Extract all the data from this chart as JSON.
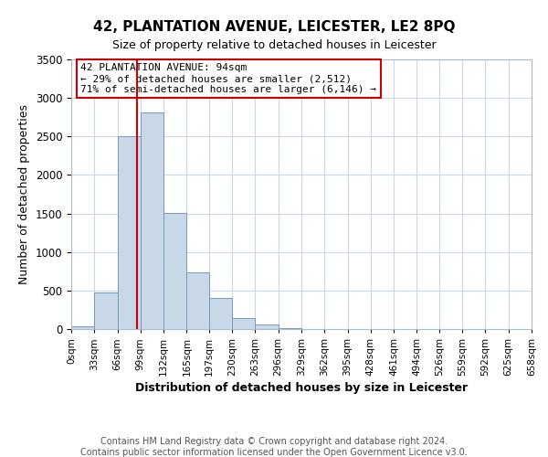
{
  "title": "42, PLANTATION AVENUE, LEICESTER, LE2 8PQ",
  "subtitle": "Size of property relative to detached houses in Leicester",
  "xlabel": "Distribution of detached houses by size in Leicester",
  "ylabel": "Number of detached properties",
  "bin_edges": [
    0,
    33,
    66,
    99,
    132,
    165,
    197,
    230,
    263,
    296,
    329,
    362,
    395,
    428,
    461,
    494,
    526,
    559,
    592,
    625,
    658
  ],
  "bin_labels": [
    "0sqm",
    "33sqm",
    "66sqm",
    "99sqm",
    "132sqm",
    "165sqm",
    "197sqm",
    "230sqm",
    "263sqm",
    "296sqm",
    "329sqm",
    "362sqm",
    "395sqm",
    "428sqm",
    "461sqm",
    "494sqm",
    "526sqm",
    "559sqm",
    "592sqm",
    "625sqm",
    "658sqm"
  ],
  "bar_heights": [
    30,
    475,
    2505,
    2810,
    1510,
    740,
    400,
    145,
    60,
    10,
    0,
    0,
    0,
    0,
    0,
    0,
    0,
    0,
    0,
    0
  ],
  "bar_color": "#c8d8e8",
  "bar_edge_color": "#7799bb",
  "property_line_x": 94,
  "property_line_color": "#cc0000",
  "ylim": [
    0,
    3500
  ],
  "annotation_line1": "42 PLANTATION AVENUE: 94sqm",
  "annotation_line2": "← 29% of detached houses are smaller (2,512)",
  "annotation_line3": "71% of semi-detached houses are larger (6,146) →",
  "annotation_box_color": "#ffffff",
  "annotation_box_edge": "#cc0000",
  "footer_line1": "Contains HM Land Registry data © Crown copyright and database right 2024.",
  "footer_line2": "Contains public sector information licensed under the Open Government Licence v3.0.",
  "bg_color": "#ffffff",
  "grid_color": "#c8d8e8"
}
